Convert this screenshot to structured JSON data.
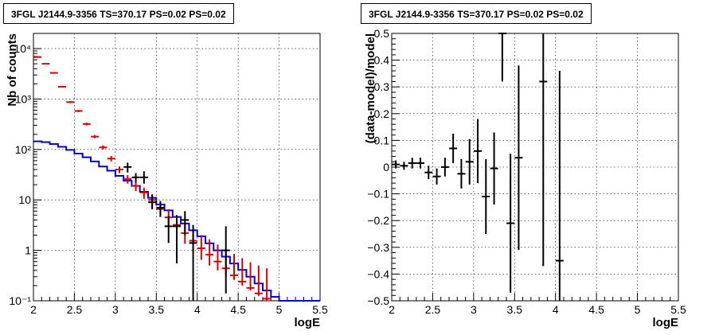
{
  "chart_data": [
    {
      "type": "line",
      "title": "3FGL J2144.9-3356 TS=370.17 PS=0.02 PS=0.02",
      "xlabel": "logE",
      "ylabel": "Nb of counts",
      "xlim": [
        2,
        5.5
      ],
      "ylim": [
        0.1,
        20000
      ],
      "yscale": "log",
      "grid": true,
      "x_ticks": [
        "2",
        "2.5",
        "3",
        "3.5",
        "4",
        "4.5",
        "5",
        "5.5"
      ],
      "y_ticks": [
        "10⁻¹",
        "1",
        "10",
        "10²",
        "10³",
        "10⁴"
      ],
      "y_tick_values": [
        0.1,
        1,
        10,
        100,
        1000,
        10000
      ],
      "colors": {
        "data": "#000000",
        "model": "#dd0000",
        "component": "#0000dd"
      },
      "model_points": {
        "x": [
          2.05,
          2.15,
          2.25,
          2.35,
          2.45,
          2.55,
          2.65,
          2.75,
          2.85,
          2.95,
          3.05,
          3.15,
          3.25,
          3.35,
          3.45,
          3.55,
          3.65,
          3.75,
          3.85,
          3.95,
          4.05,
          4.15,
          4.25,
          4.35,
          4.45,
          4.55,
          4.65,
          4.75,
          4.85
        ],
        "y": [
          6800,
          5000,
          3300,
          1750,
          870,
          580,
          320,
          180,
          110,
          66,
          40,
          26,
          19,
          14,
          10,
          6.6,
          4.5,
          3.2,
          2.2,
          1.55,
          1.1,
          0.82,
          0.6,
          0.44,
          0.32,
          0.24,
          0.18,
          0.14,
          0.11
        ],
        "err_lo": [
          6600,
          4850,
          3200,
          1690,
          830,
          550,
          300,
          167,
          100,
          58,
          34,
          21,
          15,
          10.5,
          7,
          4.6,
          3,
          2,
          1.35,
          0.92,
          0.65,
          0.5,
          0.4,
          0.32,
          0.26,
          0.2,
          0.16,
          0.125,
          0.1
        ],
        "err_hi": [
          7000,
          5150,
          3400,
          1810,
          910,
          610,
          340,
          193,
          120,
          74,
          46,
          31,
          23,
          17.5,
          13,
          9,
          6.5,
          4.8,
          3.5,
          2.6,
          2,
          1.65,
          1.3,
          1.05,
          0.85,
          0.7,
          0.58,
          0.5,
          0.44
        ]
      },
      "data_points": {
        "x": [
          3.15,
          3.25,
          3.35,
          3.45,
          3.55,
          3.65,
          3.75,
          3.85,
          3.95,
          4.35
        ],
        "y": [
          45,
          28,
          28,
          9,
          7,
          3,
          3,
          4,
          1.4,
          1
        ],
        "err_lo": [
          35,
          22,
          21,
          6.5,
          4.6,
          1.4,
          0.55,
          2,
          0.1,
          0.14
        ],
        "err_hi": [
          55,
          34,
          37,
          12.5,
          9.5,
          4.8,
          5,
          6,
          3.2,
          3
        ]
      },
      "component_step": {
        "edges": [
          2.0,
          2.1,
          2.2,
          2.3,
          2.4,
          2.5,
          2.6,
          2.7,
          2.8,
          2.9,
          3.0,
          3.1,
          3.2,
          3.3,
          3.4,
          3.5,
          3.6,
          3.7,
          3.8,
          3.9,
          4.0,
          4.1,
          4.2,
          4.3,
          4.4,
          4.5,
          4.6,
          4.7,
          4.8,
          4.9,
          5.0,
          5.5
        ],
        "values": [
          145,
          140,
          128,
          113,
          98,
          83,
          70,
          58,
          46,
          38,
          30,
          24,
          19,
          14.5,
          11,
          8.1,
          6.2,
          4.6,
          3.4,
          2.5,
          1.9,
          1.38,
          1.0,
          0.75,
          0.55,
          0.41,
          0.3,
          0.22,
          0.16,
          0.12,
          0.1
        ]
      }
    },
    {
      "type": "scatter",
      "title": "3FGL J2144.9-3356 TS=370.17 PS=0.02 PS=0.02",
      "xlabel": "logE",
      "ylabel": "(data-model)/model",
      "xlim": [
        2,
        5.5
      ],
      "ylim": [
        -0.5,
        0.5
      ],
      "grid": true,
      "x_ticks": [
        "2",
        "2.5",
        "3",
        "3.5",
        "4",
        "4.5",
        "5",
        "5.5"
      ],
      "y_ticks": [
        "−0.5",
        "−0.4",
        "−0.3",
        "−0.2",
        "−0.1",
        "0",
        "0.1",
        "0.2",
        "0.3",
        "0.4",
        "0.5"
      ],
      "y_tick_values": [
        -0.5,
        -0.4,
        -0.3,
        -0.2,
        -0.1,
        0,
        0.1,
        0.2,
        0.3,
        0.4,
        0.5
      ],
      "residuals": {
        "x": [
          2.05,
          2.15,
          2.25,
          2.35,
          2.45,
          2.55,
          2.65,
          2.75,
          2.85,
          2.95,
          3.05,
          3.15,
          3.25,
          3.35,
          3.45,
          3.55,
          3.85,
          4.05
        ],
        "y": [
          0.01,
          0.005,
          0.015,
          0.015,
          -0.02,
          -0.035,
          0.0,
          0.07,
          -0.025,
          0.02,
          0.06,
          -0.11,
          -0.005,
          0.5,
          -0.21,
          0.035,
          0.32,
          -0.35
        ],
        "err": [
          0.015,
          0.015,
          0.02,
          0.02,
          0.025,
          0.03,
          0.035,
          0.055,
          0.055,
          0.085,
          0.12,
          0.14,
          0.135,
          0.18,
          0.26,
          0.345,
          0.69,
          0.71
        ]
      }
    }
  ]
}
